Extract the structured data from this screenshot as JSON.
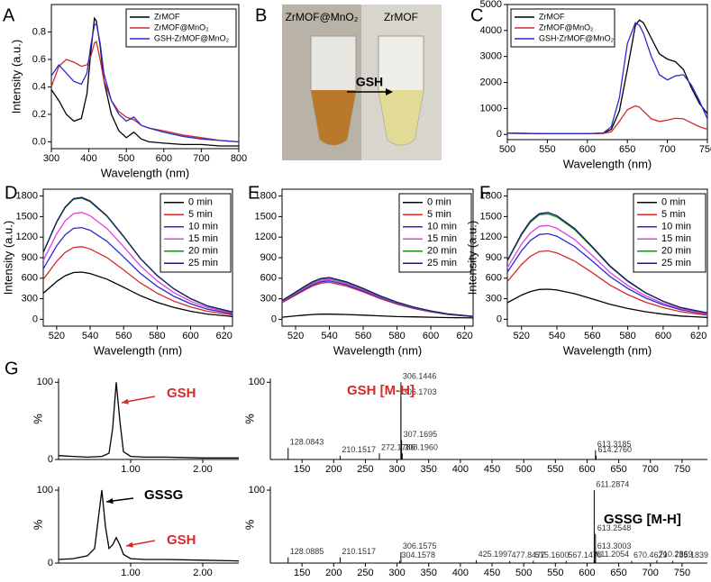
{
  "chart_data": [
    {
      "type": "line",
      "panel": "A",
      "xlabel": "Wavelength (nm)",
      "ylabel": "Intensity (a.u.)",
      "xlim": [
        300,
        800
      ],
      "xticks": [
        300,
        400,
        500,
        600,
        700,
        800
      ],
      "ylim": [
        -0.05,
        1.0
      ],
      "yticks": [
        {
          "value": 0,
          "label": "0.0"
        },
        {
          "value": 0.2,
          "label": "0.2"
        },
        {
          "value": 0.4,
          "label": "0.4"
        },
        {
          "value": 0.6,
          "label": "0.6"
        },
        {
          "value": 0.8,
          "label": "0.8"
        }
      ],
      "legend": "upper right",
      "frame": "box",
      "x": [
        300,
        320,
        340,
        360,
        380,
        395,
        405,
        415,
        420,
        430,
        440,
        460,
        480,
        500,
        520,
        540,
        560,
        600,
        650,
        700,
        750,
        800
      ],
      "series": [
        {
          "name": "ZrMOF",
          "color": "#000000",
          "values": [
            0.38,
            0.3,
            0.2,
            0.15,
            0.17,
            0.35,
            0.65,
            0.9,
            0.88,
            0.7,
            0.45,
            0.2,
            0.08,
            0.03,
            0.07,
            0.02,
            0.0,
            -0.01,
            -0.02,
            -0.02,
            -0.03,
            -0.03
          ]
        },
        {
          "name": "ZrMOF@MnO₂",
          "color": "#d42a2a",
          "values": [
            0.4,
            0.55,
            0.6,
            0.58,
            0.55,
            0.56,
            0.62,
            0.72,
            0.73,
            0.6,
            0.45,
            0.3,
            0.22,
            0.18,
            0.16,
            0.12,
            0.1,
            0.08,
            0.05,
            0.03,
            0.01,
            0.0
          ]
        },
        {
          "name": "GSH-ZrMOF@MnO₂",
          "color": "#2a2ad4",
          "values": [
            0.48,
            0.56,
            0.5,
            0.44,
            0.42,
            0.5,
            0.7,
            0.85,
            0.86,
            0.72,
            0.5,
            0.3,
            0.2,
            0.15,
            0.18,
            0.12,
            0.1,
            0.07,
            0.04,
            0.02,
            0.01,
            0.0
          ]
        }
      ]
    },
    {
      "type": "line",
      "panel": "C",
      "xlabel": "Wavelength (nm)",
      "xlim": [
        500,
        750
      ],
      "xticks": [
        500,
        550,
        600,
        650,
        700,
        750
      ],
      "ylim": [
        -200,
        5000
      ],
      "yticks": [
        0,
        1000,
        2000,
        3000,
        4000,
        5000
      ],
      "legend": "upper left",
      "frame": "box",
      "x": [
        500,
        550,
        600,
        620,
        630,
        640,
        650,
        660,
        665,
        670,
        680,
        690,
        700,
        710,
        720,
        730,
        740,
        750
      ],
      "series": [
        {
          "name": "ZrMOF",
          "color": "#000000",
          "values": [
            50,
            30,
            30,
            50,
            200,
            900,
            2500,
            4200,
            4400,
            4300,
            3700,
            3100,
            2900,
            2800,
            2500,
            1800,
            1200,
            800
          ]
        },
        {
          "name": "ZrMOF@MnO₂",
          "color": "#d42a2a",
          "values": [
            50,
            30,
            30,
            40,
            100,
            500,
            950,
            1100,
            1050,
            900,
            600,
            500,
            550,
            620,
            600,
            450,
            300,
            200
          ]
        },
        {
          "name": "GSH-ZrMOF@MnO₂",
          "color": "#2a2ad4",
          "values": [
            50,
            30,
            30,
            60,
            300,
            1400,
            3500,
            4300,
            4200,
            3900,
            3000,
            2300,
            2100,
            2250,
            2300,
            1900,
            1300,
            600
          ]
        }
      ]
    },
    {
      "type": "line",
      "panel": "D",
      "xlabel": "Wavelength (nm)",
      "ylabel": "Intensity (a.u.)",
      "xlim": [
        512,
        625
      ],
      "xticks": [
        520,
        540,
        560,
        580,
        600,
        620
      ],
      "ylim": [
        -100,
        1900
      ],
      "yticks": [
        0,
        300,
        600,
        900,
        1200,
        1500,
        1800
      ],
      "legend": "upper right",
      "frame": "box",
      "x": [
        512,
        520,
        525,
        530,
        535,
        540,
        550,
        560,
        570,
        580,
        590,
        600,
        610,
        625
      ],
      "series": [
        {
          "name": "0 min",
          "color": "#000000",
          "values": [
            380,
            552,
            635,
            683,
            690,
            669,
            587,
            469,
            345,
            248,
            173,
            117,
            76,
            41
          ]
        },
        {
          "name": "5 min",
          "color": "#d42a2a",
          "values": [
            583,
            848,
            975,
            1049,
            1060,
            1028,
            901,
            721,
            530,
            382,
            265,
            180,
            117,
            64
          ]
        },
        {
          "name": "10 min",
          "color": "#2a2ad4",
          "values": [
            737,
            1072,
            1233,
            1327,
            1340,
            1300,
            1139,
            911,
            670,
            482,
            335,
            228,
            147,
            80
          ]
        },
        {
          "name": "15 min",
          "color": "#e040e0",
          "values": [
            858,
            1248,
            1435,
            1544,
            1560,
            1513,
            1326,
            1061,
            780,
            562,
            390,
            265,
            172,
            94
          ]
        },
        {
          "name": "20 min",
          "color": "#1a8a1a",
          "values": [
            974,
            1416,
            1628,
            1752,
            1770,
            1717,
            1505,
            1204,
            885,
            637,
            443,
            301,
            195,
            106
          ]
        },
        {
          "name": "25 min",
          "color": "#1a1a6a",
          "values": [
            979,
            1424,
            1638,
            1762,
            1780,
            1727,
            1513,
            1210,
            890,
            641,
            445,
            303,
            196,
            107
          ]
        }
      ]
    },
    {
      "type": "line",
      "panel": "E",
      "xlabel": "Wavelength (nm)",
      "xlim": [
        512,
        625
      ],
      "xticks": [
        520,
        540,
        560,
        580,
        600,
        620
      ],
      "ylim": [
        -100,
        1900
      ],
      "yticks": [
        0,
        300,
        600,
        900,
        1200,
        1500,
        1800
      ],
      "legend": "upper right",
      "frame": "box",
      "x": [
        512,
        520,
        525,
        530,
        535,
        540,
        550,
        560,
        570,
        580,
        590,
        600,
        610,
        625
      ],
      "series": [
        {
          "name": "0 min",
          "color": "#000000",
          "values": [
            30,
            50,
            60,
            70,
            75,
            75,
            70,
            60,
            50,
            40,
            35,
            30,
            25,
            20
          ]
        },
        {
          "name": "5 min",
          "color": "#d42a2a",
          "values": [
            243,
            351,
            421,
            486,
            529,
            540,
            486,
            400,
            302,
            221,
            157,
            108,
            70,
            38
          ]
        },
        {
          "name": "10 min",
          "color": "#2a2ad4",
          "values": [
            252,
            364,
            437,
            504,
            549,
            560,
            504,
            414,
            314,
            230,
            162,
            112,
            73,
            39
          ]
        },
        {
          "name": "15 min",
          "color": "#e040e0",
          "values": [
            261,
            377,
            452,
            522,
            568,
            580,
            522,
            429,
            325,
            238,
            168,
            116,
            75,
            41
          ]
        },
        {
          "name": "20 min",
          "color": "#1a8a1a",
          "values": [
            270,
            390,
            468,
            540,
            588,
            600,
            540,
            444,
            336,
            246,
            174,
            120,
            78,
            42
          ]
        },
        {
          "name": "25 min",
          "color": "#1a1a6a",
          "values": [
            275,
            397,
            476,
            549,
            598,
            610,
            549,
            451,
            342,
            250,
            177,
            122,
            79,
            43
          ]
        }
      ]
    },
    {
      "type": "line",
      "panel": "F",
      "xlabel": "Wavelength (nm)",
      "ylabel": "Intensity (a.u.)",
      "xlim": [
        512,
        625
      ],
      "xticks": [
        520,
        540,
        560,
        580,
        600,
        620
      ],
      "ylim": [
        -100,
        1900
      ],
      "yticks": [
        0,
        300,
        600,
        900,
        1200,
        1500,
        1800
      ],
      "legend": "upper right",
      "frame": "box",
      "x": [
        512,
        520,
        525,
        530,
        535,
        540,
        550,
        560,
        570,
        580,
        590,
        600,
        610,
        625
      ],
      "series": [
        {
          "name": "0 min",
          "color": "#000000",
          "values": [
            242,
            352,
            405,
            436,
            440,
            427,
            374,
            299,
            220,
            158,
            110,
            75,
            48,
            26
          ]
        },
        {
          "name": "5 min",
          "color": "#d42a2a",
          "values": [
            550,
            800,
            920,
            990,
            1000,
            970,
            850,
            680,
            500,
            360,
            250,
            170,
            110,
            60
          ]
        },
        {
          "name": "10 min",
          "color": "#2a2ad4",
          "values": [
            688,
            1000,
            1150,
            1238,
            1250,
            1213,
            1063,
            850,
            625,
            450,
            313,
            213,
            138,
            75
          ]
        },
        {
          "name": "15 min",
          "color": "#e040e0",
          "values": [
            754,
            1096,
            1260,
            1356,
            1370,
            1329,
            1165,
            932,
            685,
            493,
            343,
            233,
            151,
            82
          ]
        },
        {
          "name": "20 min",
          "color": "#1a8a1a",
          "values": [
            847,
            1232,
            1417,
            1525,
            1540,
            1494,
            1309,
            1047,
            770,
            554,
            385,
            262,
            169,
            92
          ]
        },
        {
          "name": "25 min",
          "color": "#1a1a6a",
          "values": [
            858,
            1248,
            1435,
            1544,
            1560,
            1513,
            1326,
            1061,
            780,
            562,
            390,
            265,
            172,
            94
          ]
        }
      ]
    },
    {
      "type": "line",
      "panel": "G",
      "ylabel": "%",
      "frame": "axes",
      "xlim": [
        0,
        2.5
      ],
      "xticks": [
        {
          "value": 1,
          "label": "1.00"
        },
        {
          "value": 2,
          "label": "2.00"
        }
      ],
      "ylim": [
        0,
        105
      ],
      "yticks": [
        0,
        100
      ],
      "x": [
        0,
        0.2,
        0.4,
        0.6,
        0.7,
        0.75,
        0.8,
        0.85,
        0.9,
        1.0,
        1.2,
        1.5,
        2.0,
        2.5
      ],
      "series": [
        {
          "color": "#000000",
          "values": [
            5,
            4,
            3,
            4,
            8,
            40,
            100,
            50,
            10,
            4,
            3,
            3,
            2,
            2
          ]
        }
      ],
      "annotations": [
        {
          "text": "GSH",
          "color": "#d42a2a"
        }
      ]
    },
    {
      "type": "stick",
      "ylabel": "%",
      "frame": "axes",
      "xlim": [
        100,
        790
      ],
      "xticks": [
        150,
        200,
        250,
        300,
        350,
        400,
        450,
        500,
        550,
        600,
        650,
        700,
        750
      ],
      "ylim": [
        0,
        105
      ],
      "yticks": [
        100
      ],
      "color": "#000000",
      "x": [
        128.0843,
        210.1517,
        272.1786,
        306.1446,
        306.1703,
        307.1695,
        308.196,
        613.3185,
        614.276
      ],
      "peak_labels": [
        "128.0843",
        "210.1517",
        "272.1786",
        "306.1446",
        "306.1703",
        "307.1695",
        "308.1960",
        "613.3185",
        "614.2760"
      ],
      "values": [
        15,
        5,
        8,
        100,
        80,
        25,
        8,
        12,
        5
      ],
      "annotations": [
        {
          "text": "GSH [M-H]",
          "color": "#d42a2a"
        }
      ]
    },
    {
      "type": "line",
      "ylabel": "%",
      "frame": "axes",
      "xlim": [
        0,
        2.5
      ],
      "xticks": [
        {
          "value": 1,
          "label": "1.00"
        },
        {
          "value": 2,
          "label": "2.00"
        }
      ],
      "ylim": [
        0,
        105
      ],
      "yticks": [
        0,
        100
      ],
      "x": [
        0,
        0.2,
        0.4,
        0.5,
        0.55,
        0.6,
        0.65,
        0.7,
        0.75,
        0.8,
        0.85,
        0.9,
        1.0,
        1.2,
        1.5,
        2.0,
        2.5
      ],
      "series": [
        {
          "color": "#000000",
          "values": [
            5,
            6,
            10,
            20,
            60,
            100,
            50,
            20,
            25,
            35,
            25,
            12,
            6,
            5,
            5,
            4,
            3
          ]
        }
      ],
      "annotations": [
        {
          "text": "GSSG",
          "color": "#000000"
        },
        {
          "text": "GSH",
          "color": "#d42a2a"
        }
      ]
    },
    {
      "type": "stick",
      "ylabel": "%",
      "frame": "axes",
      "xlim": [
        100,
        790
      ],
      "xticks": [
        150,
        200,
        250,
        300,
        350,
        400,
        450,
        500,
        550,
        600,
        650,
        700,
        750
      ],
      "ylim": [
        0,
        105
      ],
      "yticks": [
        100
      ],
      "color": "#000000",
      "x": [
        128.0885,
        210.1517,
        304.1578,
        306.1575,
        425.1997,
        477.8477,
        515.16,
        567.147,
        611.2054,
        611.2874,
        613.2548,
        613.3003,
        670.4629,
        710.2869,
        735.1839
      ],
      "peak_labels": [
        "128.0885",
        "210.1517",
        "304.1578",
        "306.1575",
        "425.1997",
        "477.8477",
        "515.1600",
        "567.1470",
        "611.2054",
        "611.2874",
        "613.2548",
        "613.3003",
        "670.4629",
        "710.2869",
        "735.1839"
      ],
      "values": [
        8,
        8,
        3,
        15,
        4,
        3,
        3,
        3,
        4,
        100,
        40,
        15,
        3,
        4,
        3
      ],
      "annotations": [
        {
          "text": "GSSG [M-H]",
          "color": "#000000"
        }
      ]
    }
  ],
  "photo": {
    "panel": "B",
    "left_label": "ZrMOF@MnO₂",
    "right_label": "ZrMOF",
    "arrow_label": "GSH"
  }
}
